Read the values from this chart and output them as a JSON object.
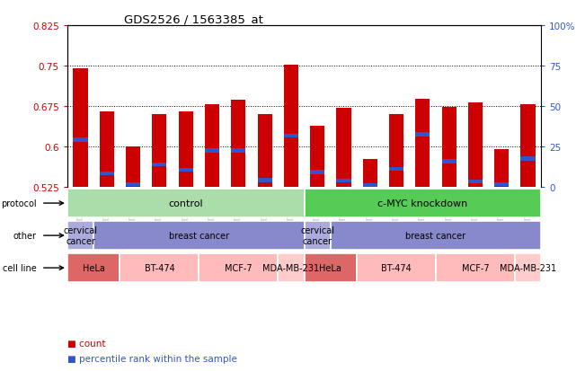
{
  "title": "GDS2526 / 1563385_at",
  "samples": [
    "GSM136095",
    "GSM136097",
    "GSM136079",
    "GSM136081",
    "GSM136083",
    "GSM136085",
    "GSM136087",
    "GSM136089",
    "GSM136091",
    "GSM136096",
    "GSM136098",
    "GSM136080",
    "GSM136082",
    "GSM136084",
    "GSM136086",
    "GSM136088",
    "GSM136090",
    "GSM136092"
  ],
  "bar_values": [
    0.745,
    0.665,
    0.6,
    0.66,
    0.665,
    0.678,
    0.686,
    0.66,
    0.752,
    0.638,
    0.672,
    0.577,
    0.66,
    0.688,
    0.673,
    0.681,
    0.594,
    0.678
  ],
  "blue_values": [
    0.612,
    0.55,
    0.53,
    0.566,
    0.556,
    0.592,
    0.592,
    0.537,
    0.62,
    0.552,
    0.536,
    0.527,
    0.558,
    0.622,
    0.572,
    0.535,
    0.53,
    0.577
  ],
  "ymin": 0.525,
  "ymax": 0.825,
  "yticks": [
    0.525,
    0.6,
    0.675,
    0.75,
    0.825
  ],
  "right_yticks": [
    0,
    25,
    50,
    75,
    100
  ],
  "bar_color": "#cc0000",
  "blue_color": "#3355cc",
  "protocol_row": {
    "label": "protocol",
    "groups": [
      {
        "text": "control",
        "start": 0,
        "end": 9,
        "color": "#aaddaa"
      },
      {
        "text": "c-MYC knockdown",
        "start": 9,
        "end": 18,
        "color": "#55cc55"
      }
    ]
  },
  "other_row": {
    "label": "other",
    "groups": [
      {
        "text": "cervical\ncancer",
        "start": 0,
        "end": 1,
        "color": "#aaaadd"
      },
      {
        "text": "breast cancer",
        "start": 1,
        "end": 9,
        "color": "#8888cc"
      },
      {
        "text": "cervical\ncancer",
        "start": 9,
        "end": 10,
        "color": "#aaaadd"
      },
      {
        "text": "breast cancer",
        "start": 10,
        "end": 18,
        "color": "#8888cc"
      }
    ]
  },
  "cellline_row": {
    "label": "cell line",
    "groups": [
      {
        "text": "HeLa",
        "start": 0,
        "end": 2,
        "color": "#dd6666"
      },
      {
        "text": "BT-474",
        "start": 2,
        "end": 5,
        "color": "#ffbbbb"
      },
      {
        "text": "MCF-7",
        "start": 5,
        "end": 8,
        "color": "#ffbbbb"
      },
      {
        "text": "MDA-MB-231",
        "start": 8,
        "end": 9,
        "color": "#ffcccc"
      },
      {
        "text": "HeLa",
        "start": 9,
        "end": 11,
        "color": "#dd6666"
      },
      {
        "text": "BT-474",
        "start": 11,
        "end": 14,
        "color": "#ffbbbb"
      },
      {
        "text": "MCF-7",
        "start": 14,
        "end": 17,
        "color": "#ffbbbb"
      },
      {
        "text": "MDA-MB-231",
        "start": 17,
        "end": 18,
        "color": "#ffcccc"
      }
    ]
  },
  "legend_items": [
    {
      "label": "count",
      "color": "#cc0000"
    },
    {
      "label": "percentile rank within the sample",
      "color": "#3355cc"
    }
  ]
}
